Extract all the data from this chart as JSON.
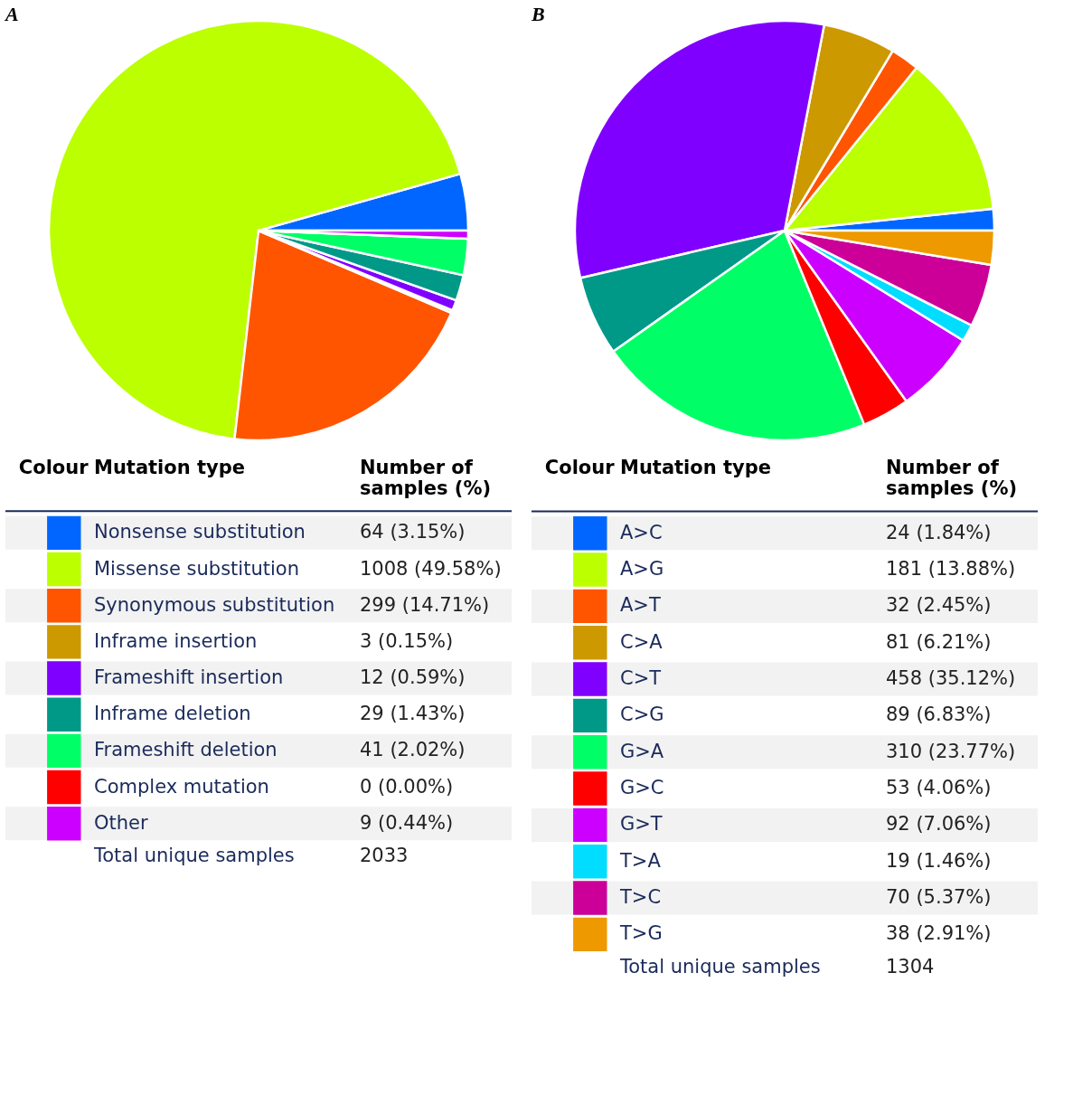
{
  "chart_data": [
    {
      "type": "pie",
      "title": "A",
      "legend": "bottom",
      "categories": [
        "Nonsense substitution",
        "Missense substitution",
        "Synonymous substitution",
        "Inframe insertion",
        "Frameshift insertion",
        "Inframe deletion",
        "Frameshift deletion",
        "Complex mutation",
        "Other"
      ],
      "values": [
        64,
        1008,
        299,
        3,
        12,
        29,
        41,
        0,
        9
      ],
      "colors": [
        "#0066ff",
        "#bbff00",
        "#ff5500",
        "#cc9900",
        "#8000ff",
        "#009988",
        "#00ff66",
        "#ff0000",
        "#cc00ff"
      ],
      "value_labels": [
        "64 (3.15%)",
        "1008 (49.58%)",
        "299 (14.71%)",
        "3 (0.15%)",
        "12 (0.59%)",
        "29 (1.43%)",
        "41 (2.02%)",
        "0 (0.00%)",
        "9 (0.44%)"
      ],
      "annotations": [
        "Colour",
        "Mutation type",
        "Number of samples (%)",
        "Total unique samples",
        "2033"
      ]
    },
    {
      "type": "pie",
      "title": "B",
      "legend": "bottom",
      "categories": [
        "A>C",
        "A>G",
        "A>T",
        "C>A",
        "C>T",
        "C>G",
        "G>A",
        "G>C",
        "G>T",
        "T>A",
        "T>C",
        "T>G"
      ],
      "values": [
        24,
        181,
        32,
        81,
        458,
        89,
        310,
        53,
        92,
        19,
        70,
        38
      ],
      "colors": [
        "#0066ff",
        "#bbff00",
        "#ff5500",
        "#cc9900",
        "#8000ff",
        "#009988",
        "#00ff66",
        "#ff0000",
        "#cc00ff",
        "#00ddff",
        "#cc0099",
        "#ee9900"
      ],
      "value_labels": [
        "24 (1.84%)",
        "181 (13.88%)",
        "32 (2.45%)",
        "81 (6.21%)",
        "458 (35.12%)",
        "89 (6.83%)",
        "310 (23.77%)",
        "53 (4.06%)",
        "92 (7.06%)",
        "19 (1.46%)",
        "70 (5.37%)",
        "38 (2.91%)"
      ],
      "annotations": [
        "Colour",
        "Mutation type",
        "Number of samples (%)",
        "Total unique samples",
        "1304"
      ]
    }
  ]
}
